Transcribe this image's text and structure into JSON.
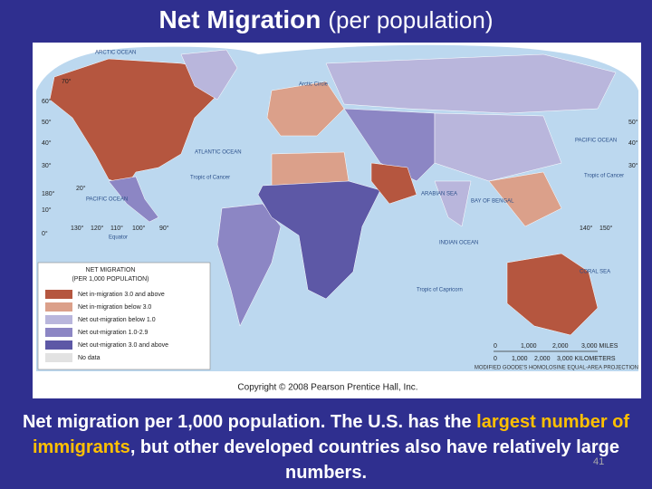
{
  "header": {
    "title_bold": "Net Migration",
    "title_rest": "(per population)"
  },
  "map": {
    "labels": [
      "ARCTIC OCEAN",
      "Arctic Circle",
      "ATLANTIC OCEAN",
      "Tropic of Cancer",
      "PACIFIC OCEAN",
      "Equator",
      "PACIFIC OCEAN",
      "Tropic of Cancer",
      "ARABIAN SEA",
      "BAY OF BENGAL",
      "INDIAN OCEAN",
      "Tropic of Capricorn",
      "CORAL SEA"
    ],
    "graticule": [
      "70°",
      "60°",
      "50°",
      "40°",
      "30°",
      "20°",
      "10°",
      "0°",
      "180°",
      "130°",
      "120°",
      "110°",
      "100°",
      "90°",
      "50°",
      "40°",
      "30°",
      "140°",
      "150°"
    ],
    "legend": {
      "title": [
        "NET MIGRATION",
        "(PER 1,000 POPULATION)"
      ],
      "items": [
        "Net in-migration 3.0 and above",
        "Net in-migration below 3.0",
        "Net out-migration below 1.0",
        "Net out-migration 1.0-2.9",
        "Net out-migration 3.0 and above",
        "No data"
      ]
    },
    "scale": [
      "0",
      "1,000",
      "2,000",
      "3,000 MILES",
      "0",
      "1,000",
      "2,000",
      "3,000 KILOMETERS"
    ],
    "projection": "MODIFIED GOODE'S HOMOLOSINE EQUAL-AREA PROJECTION",
    "copyright": "Copyright © 2008 Pearson Prentice Hall, Inc."
  },
  "caption": [
    "Net migration per 1,000 population. The U.S. has the ",
    "largest number of immigrants",
    ", but other developed countries also have relatively large numbers."
  ],
  "page_number": "41"
}
